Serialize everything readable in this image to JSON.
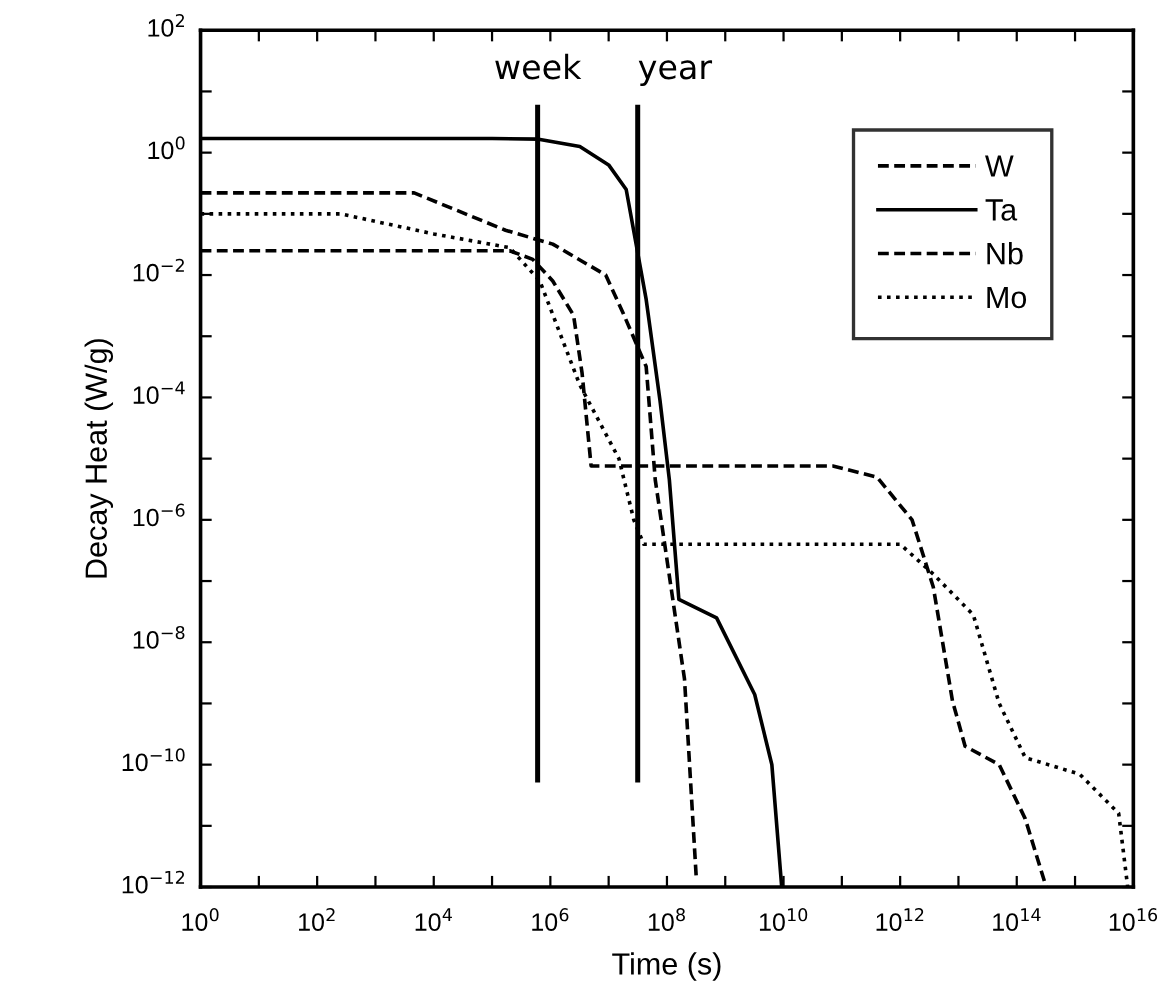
{
  "chart_data": {
    "type": "line",
    "xlabel": "Time (s)",
    "ylabel": "Decay Heat (W/g)",
    "log": "xy",
    "xlim": [
      1,
      1e+16
    ],
    "ylim": [
      1e-12,
      100
    ],
    "xticks": [
      {
        "value": 1,
        "label": "10$^{0}$"
      },
      {
        "value": 10,
        "label": null
      },
      {
        "value": 100,
        "label": "10$^{2}$"
      },
      {
        "value": 1000,
        "label": null
      },
      {
        "value": 10000.0,
        "label": "10$^{4}$"
      },
      {
        "value": 100000.0,
        "label": null
      },
      {
        "value": 1000000.0,
        "label": "10$^{6}$"
      },
      {
        "value": 10000000.0,
        "label": null
      },
      {
        "value": 100000000.0,
        "label": "10$^{8}$"
      },
      {
        "value": 1000000000.0,
        "label": null
      },
      {
        "value": 10000000000.0,
        "label": "10$^{10}$"
      },
      {
        "value": 100000000000.0,
        "label": null
      },
      {
        "value": 1000000000000.0,
        "label": "10$^{12}$"
      },
      {
        "value": 10000000000000.0,
        "label": null
      },
      {
        "value": 100000000000000.0,
        "label": "10$^{14}$"
      },
      {
        "value": 1000000000000000.0,
        "label": null
      },
      {
        "value": 1e+16,
        "label": "10$^{16}$"
      }
    ],
    "yticks": [
      {
        "value": 1e-12,
        "label": "10$^{−12}$"
      },
      {
        "value": 1e-11,
        "label": null
      },
      {
        "value": 1e-10,
        "label": "10$^{−10}$"
      },
      {
        "value": 1e-09,
        "label": null
      },
      {
        "value": 1e-08,
        "label": "10$^{−8}$"
      },
      {
        "value": 1e-07,
        "label": null
      },
      {
        "value": 1e-06,
        "label": "10$^{−6}$"
      },
      {
        "value": 1e-05,
        "label": null
      },
      {
        "value": 0.0001,
        "label": "10$^{−4}$"
      },
      {
        "value": 0.001,
        "label": null
      },
      {
        "value": 0.01,
        "label": "10$^{−2}$"
      },
      {
        "value": 0.1,
        "label": null
      },
      {
        "value": 1,
        "label": "10$^{0}$"
      },
      {
        "value": 10,
        "label": null
      },
      {
        "value": 100,
        "label": "10$^{2}$"
      }
    ],
    "legend": "top right",
    "grid": false,
    "marker": "none",
    "ref_lines": [
      {
        "axis": "x",
        "value": 605000.0,
        "label": "week",
        "color": "#000000",
        "line_style": "solid"
      },
      {
        "axis": "x",
        "value": 31500000.0,
        "label": "year",
        "color": "#000000",
        "line_style": "solid"
      }
    ],
    "series": [
      {
        "name": "W",
        "color": "#000000",
        "line_style": "dashed",
        "x": [
          1,
          4600.0,
          170000.0,
          1100000.0,
          8900000.0,
          18000000.0,
          44000000.0,
          63000000.0,
          200000000.0,
          320000000.0
        ],
        "values": [
          0.22,
          0.22,
          0.054,
          0.032,
          0.01,
          0.0023,
          0.00032,
          4.5e-06,
          2.5e-09,
          1.3e-12
        ]
      },
      {
        "name": "Ta",
        "color": "#000000",
        "line_style": "solid",
        "x": [
          1,
          100000.0,
          630000.0,
          3200000.0,
          10000000.0,
          20000000.0,
          44000000.0,
          76000000.0,
          110000000.0,
          160000000.0,
          710000000.0,
          3200000000.0,
          6300000000.0,
          9300000000.0
        ],
        "values": [
          1.7,
          1.7,
          1.66,
          1.26,
          0.63,
          0.25,
          0.004,
          8.9e-05,
          4.5e-06,
          5e-08,
          2.5e-08,
          1.4e-09,
          1e-10,
          1e-12
        ]
      },
      {
        "name": "Nb",
        "color": "#000000",
        "line_style": "dashed",
        "x": [
          1,
          200000.0,
          500000.0,
          1100000.0,
          2500000.0,
          3500000.0,
          5000000.0,
          70000000000.0,
          400000000000.0,
          1600000000000.0,
          3700000000000.0,
          7900000000000.0,
          13000000000000.0,
          50000000000000.0,
          140000000000000.0,
          320000000000000.0
        ],
        "values": [
          0.025,
          0.025,
          0.018,
          0.008,
          0.0022,
          0.00025,
          7.6e-06,
          7.6e-06,
          5e-06,
          1e-06,
          8e-08,
          1.1e-09,
          2e-10,
          1e-10,
          1.3e-11,
          1e-12
        ]
      },
      {
        "name": "Mo",
        "color": "#000000",
        "line_style": "dotted",
        "x": [
          1,
          250,
          10000.0,
          200000.0,
          660000.0,
          3200000.0,
          15000000.0,
          27000000.0,
          40000000.0,
          1000000000000.0,
          3700000000000.0,
          18000000000000.0,
          50000000000000.0,
          140000000000000.0,
          1200000000000000.0,
          5600000000000000.0,
          8000000000000000.0
        ],
        "values": [
          0.1,
          0.1,
          0.047,
          0.028,
          0.008,
          0.00016,
          1e-05,
          1e-06,
          4e-07,
          4e-07,
          1.3e-07,
          2.8e-08,
          1e-09,
          1.3e-10,
          7e-11,
          1.6e-11,
          1e-12
        ]
      }
    ]
  }
}
